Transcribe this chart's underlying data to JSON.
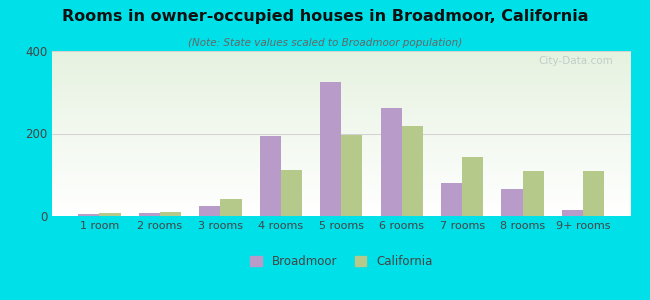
{
  "title": "Rooms in owner-occupied houses in Broadmoor, California",
  "subtitle": "(Note: State values scaled to Broadmoor population)",
  "categories": [
    "1 room",
    "2 rooms",
    "3 rooms",
    "4 rooms",
    "5 rooms",
    "6 rooms",
    "7 rooms",
    "8 rooms",
    "9+ rooms"
  ],
  "broadmoor": [
    5,
    8,
    25,
    195,
    325,
    262,
    80,
    65,
    15
  ],
  "california": [
    8,
    10,
    42,
    112,
    197,
    218,
    142,
    108,
    110
  ],
  "broadmoor_color": "#b89bc8",
  "california_color": "#b5c98a",
  "background_outer": "#00e0e8",
  "ylim": [
    0,
    400
  ],
  "yticks": [
    0,
    200,
    400
  ],
  "legend_broadmoor": "Broadmoor",
  "legend_california": "California",
  "watermark": "City-Data.com"
}
